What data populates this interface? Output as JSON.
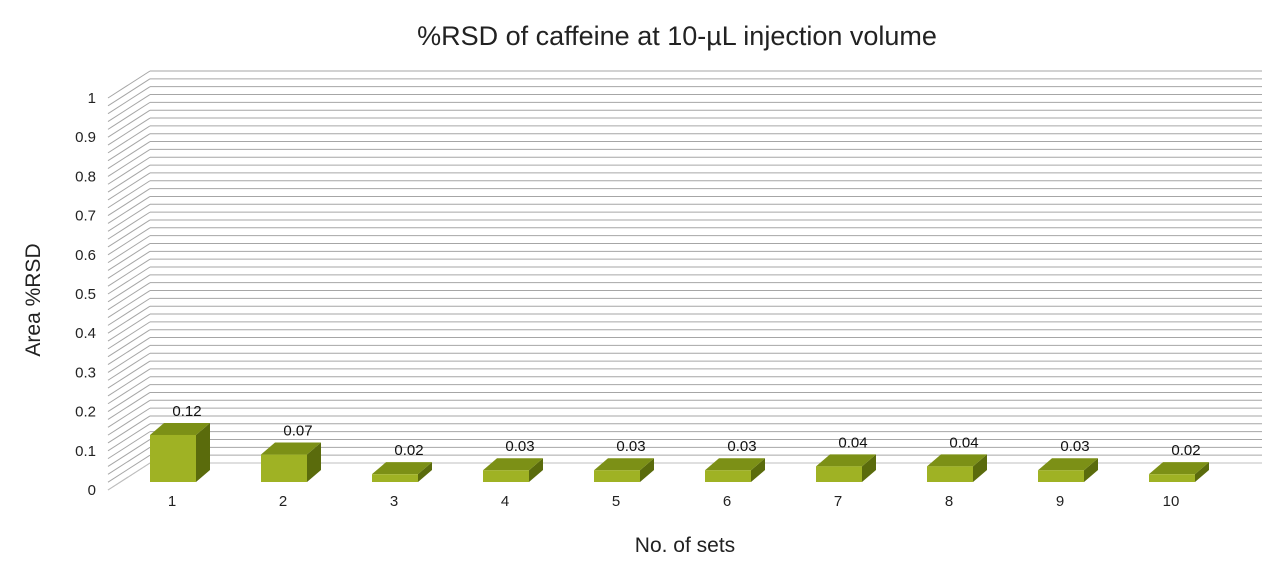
{
  "chart_data": {
    "type": "bar",
    "title": "%RSD of caffeine at 10-µL injection volume",
    "xlabel": "No. of sets",
    "ylabel": "Area %RSD",
    "categories": [
      "1",
      "2",
      "3",
      "4",
      "5",
      "6",
      "7",
      "8",
      "9",
      "10"
    ],
    "values": [
      0.12,
      0.07,
      0.02,
      0.03,
      0.03,
      0.03,
      0.04,
      0.04,
      0.03,
      0.02
    ],
    "data_labels": [
      "0.12",
      "0.07",
      "0.02",
      "0.03",
      "0.03",
      "0.03",
      "0.04",
      "0.04",
      "0.03",
      "0.02"
    ],
    "y_ticks": [
      "0",
      "0.1",
      "0.2",
      "0.3",
      "0.4",
      "0.5",
      "0.6",
      "0.7",
      "0.8",
      "0.9",
      "1"
    ],
    "ylim": [
      0,
      1
    ],
    "y_tick_step": 0.1,
    "grid": true,
    "legend": "none",
    "style": "3d-column",
    "colors": {
      "bar_front": "#9fb224",
      "bar_top": "#7c9016",
      "bar_side": "#5a6b0c",
      "grid": "#a6a6a6",
      "floor": "#bfbfbf"
    }
  }
}
